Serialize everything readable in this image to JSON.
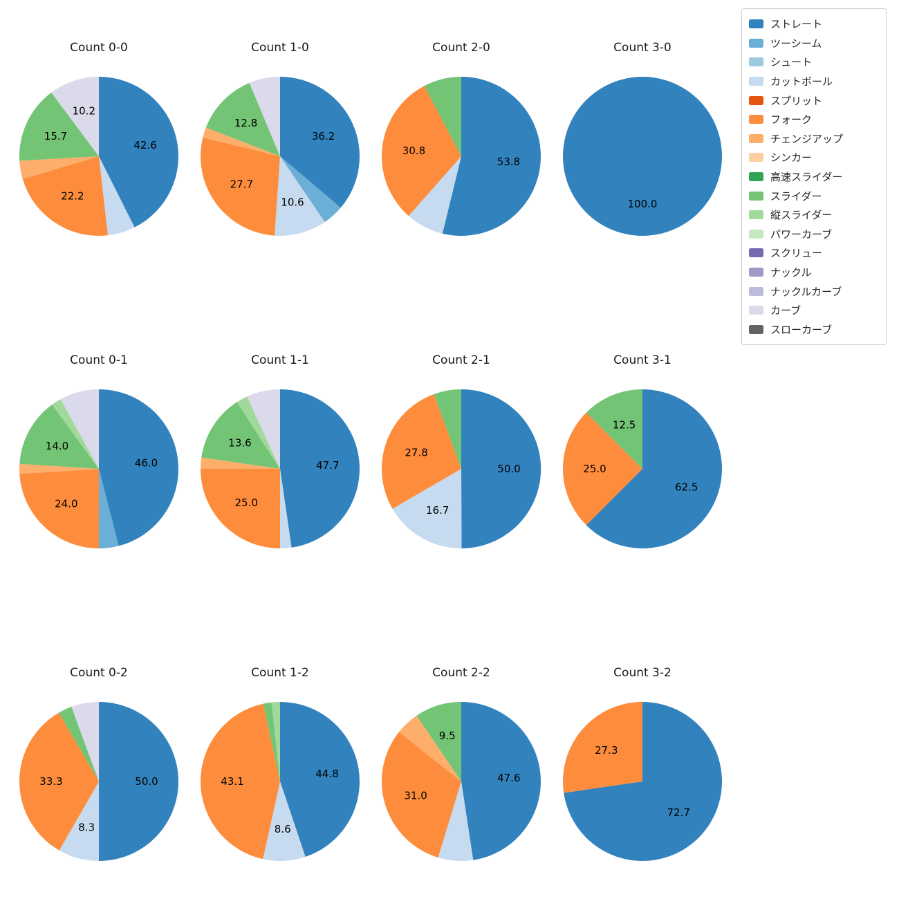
{
  "figure": {
    "background": "#ffffff",
    "text_color": "#262626",
    "title_color": "#1a1a1a"
  },
  "legend": {
    "position": "top-right",
    "items": [
      {
        "label": "ストレート",
        "color": "#3182bd"
      },
      {
        "label": "ツーシーム",
        "color": "#6baed6"
      },
      {
        "label": "シュート",
        "color": "#9ecae1"
      },
      {
        "label": "カットボール",
        "color": "#c6dbef"
      },
      {
        "label": "スプリット",
        "color": "#e6550d"
      },
      {
        "label": "フォーク",
        "color": "#fd8d3c"
      },
      {
        "label": "チェンジアップ",
        "color": "#fdae6b"
      },
      {
        "label": "シンカー",
        "color": "#fdd0a2"
      },
      {
        "label": "高速スライダー",
        "color": "#31a354"
      },
      {
        "label": "スライダー",
        "color": "#74c476"
      },
      {
        "label": "縦スライダー",
        "color": "#a1d99b"
      },
      {
        "label": "パワーカーブ",
        "color": "#c7e9c0"
      },
      {
        "label": "スクリュー",
        "color": "#756bb1"
      },
      {
        "label": "ナックル",
        "color": "#9e9ac8"
      },
      {
        "label": "ナックルカーブ",
        "color": "#bcbddc"
      },
      {
        "label": "カーブ",
        "color": "#dadaeb"
      },
      {
        "label": "スローカーブ",
        "color": "#636363"
      }
    ]
  },
  "chart_data": [
    {
      "type": "pie",
      "title": "Count 0-0",
      "unit": "percent",
      "start_angle": "top",
      "direction": "clockwise",
      "slices": [
        {
          "label": "ストレート",
          "value": 42.6,
          "labeled": true
        },
        {
          "label": "カットボール",
          "value": 5.6,
          "labeled": false
        },
        {
          "label": "フォーク",
          "value": 22.2,
          "labeled": true
        },
        {
          "label": "チェンジアップ",
          "value": 3.7,
          "labeled": false
        },
        {
          "label": "スライダー",
          "value": 15.7,
          "labeled": true
        },
        {
          "label": "カーブ",
          "value": 10.2,
          "labeled": true
        }
      ]
    },
    {
      "type": "pie",
      "title": "Count 1-0",
      "unit": "percent",
      "start_angle": "top",
      "direction": "clockwise",
      "slices": [
        {
          "label": "ストレート",
          "value": 36.2,
          "labeled": true
        },
        {
          "label": "ツーシーム",
          "value": 4.3,
          "labeled": false
        },
        {
          "label": "カットボール",
          "value": 10.6,
          "labeled": true
        },
        {
          "label": "フォーク",
          "value": 27.7,
          "labeled": true
        },
        {
          "label": "チェンジアップ",
          "value": 2.1,
          "labeled": false
        },
        {
          "label": "スライダー",
          "value": 12.8,
          "labeled": true
        },
        {
          "label": "カーブ",
          "value": 6.3,
          "labeled": false
        }
      ]
    },
    {
      "type": "pie",
      "title": "Count 2-0",
      "unit": "percent",
      "start_angle": "top",
      "direction": "clockwise",
      "slices": [
        {
          "label": "ストレート",
          "value": 53.8,
          "labeled": true
        },
        {
          "label": "カットボール",
          "value": 7.7,
          "labeled": false
        },
        {
          "label": "フォーク",
          "value": 30.8,
          "labeled": true
        },
        {
          "label": "スライダー",
          "value": 7.7,
          "labeled": false
        }
      ]
    },
    {
      "type": "pie",
      "title": "Count 3-0",
      "unit": "percent",
      "start_angle": "top",
      "direction": "clockwise",
      "slices": [
        {
          "label": "ストレート",
          "value": 100.0,
          "labeled": true
        }
      ]
    },
    {
      "type": "pie",
      "title": "Count 0-1",
      "unit": "percent",
      "start_angle": "top",
      "direction": "clockwise",
      "slices": [
        {
          "label": "ストレート",
          "value": 46.0,
          "labeled": true
        },
        {
          "label": "ツーシーム",
          "value": 4.0,
          "labeled": false
        },
        {
          "label": "フォーク",
          "value": 24.0,
          "labeled": true
        },
        {
          "label": "チェンジアップ",
          "value": 2.0,
          "labeled": false
        },
        {
          "label": "スライダー",
          "value": 14.0,
          "labeled": true
        },
        {
          "label": "縦スライダー",
          "value": 2.0,
          "labeled": false
        },
        {
          "label": "カーブ",
          "value": 8.0,
          "labeled": false
        }
      ]
    },
    {
      "type": "pie",
      "title": "Count 1-1",
      "unit": "percent",
      "start_angle": "top",
      "direction": "clockwise",
      "slices": [
        {
          "label": "ストレート",
          "value": 47.7,
          "labeled": true
        },
        {
          "label": "カットボール",
          "value": 2.3,
          "labeled": false
        },
        {
          "label": "フォーク",
          "value": 25.0,
          "labeled": true
        },
        {
          "label": "チェンジアップ",
          "value": 2.3,
          "labeled": false
        },
        {
          "label": "スライダー",
          "value": 13.6,
          "labeled": true
        },
        {
          "label": "縦スライダー",
          "value": 2.3,
          "labeled": false
        },
        {
          "label": "カーブ",
          "value": 6.8,
          "labeled": false
        }
      ]
    },
    {
      "type": "pie",
      "title": "Count 2-1",
      "unit": "percent",
      "start_angle": "top",
      "direction": "clockwise",
      "slices": [
        {
          "label": "ストレート",
          "value": 50.0,
          "labeled": true
        },
        {
          "label": "カットボール",
          "value": 16.7,
          "labeled": true
        },
        {
          "label": "フォーク",
          "value": 27.8,
          "labeled": true
        },
        {
          "label": "スライダー",
          "value": 5.6,
          "labeled": false
        }
      ]
    },
    {
      "type": "pie",
      "title": "Count 3-1",
      "unit": "percent",
      "start_angle": "top",
      "direction": "clockwise",
      "slices": [
        {
          "label": "ストレート",
          "value": 62.5,
          "labeled": true
        },
        {
          "label": "フォーク",
          "value": 25.0,
          "labeled": true
        },
        {
          "label": "スライダー",
          "value": 12.5,
          "labeled": true
        }
      ]
    },
    {
      "type": "pie",
      "title": "Count 0-2",
      "unit": "percent",
      "start_angle": "top",
      "direction": "clockwise",
      "slices": [
        {
          "label": "ストレート",
          "value": 50.0,
          "labeled": true
        },
        {
          "label": "カットボール",
          "value": 8.3,
          "labeled": true
        },
        {
          "label": "フォーク",
          "value": 33.3,
          "labeled": true
        },
        {
          "label": "スライダー",
          "value": 2.8,
          "labeled": false
        },
        {
          "label": "カーブ",
          "value": 5.6,
          "labeled": false
        }
      ]
    },
    {
      "type": "pie",
      "title": "Count 1-2",
      "unit": "percent",
      "start_angle": "top",
      "direction": "clockwise",
      "slices": [
        {
          "label": "ストレート",
          "value": 44.8,
          "labeled": true
        },
        {
          "label": "カットボール",
          "value": 8.6,
          "labeled": true
        },
        {
          "label": "フォーク",
          "value": 43.1,
          "labeled": true
        },
        {
          "label": "スライダー",
          "value": 1.7,
          "labeled": false
        },
        {
          "label": "縦スライダー",
          "value": 1.7,
          "labeled": false
        }
      ]
    },
    {
      "type": "pie",
      "title": "Count 2-2",
      "unit": "percent",
      "start_angle": "top",
      "direction": "clockwise",
      "slices": [
        {
          "label": "ストレート",
          "value": 47.6,
          "labeled": true
        },
        {
          "label": "カットボール",
          "value": 7.1,
          "labeled": false
        },
        {
          "label": "フォーク",
          "value": 31.0,
          "labeled": true
        },
        {
          "label": "チェンジアップ",
          "value": 4.8,
          "labeled": false
        },
        {
          "label": "スライダー",
          "value": 9.5,
          "labeled": true
        }
      ]
    },
    {
      "type": "pie",
      "title": "Count 3-2",
      "unit": "percent",
      "start_angle": "top",
      "direction": "clockwise",
      "slices": [
        {
          "label": "ストレート",
          "value": 72.7,
          "labeled": true
        },
        {
          "label": "フォーク",
          "value": 27.3,
          "labeled": true
        }
      ]
    }
  ]
}
